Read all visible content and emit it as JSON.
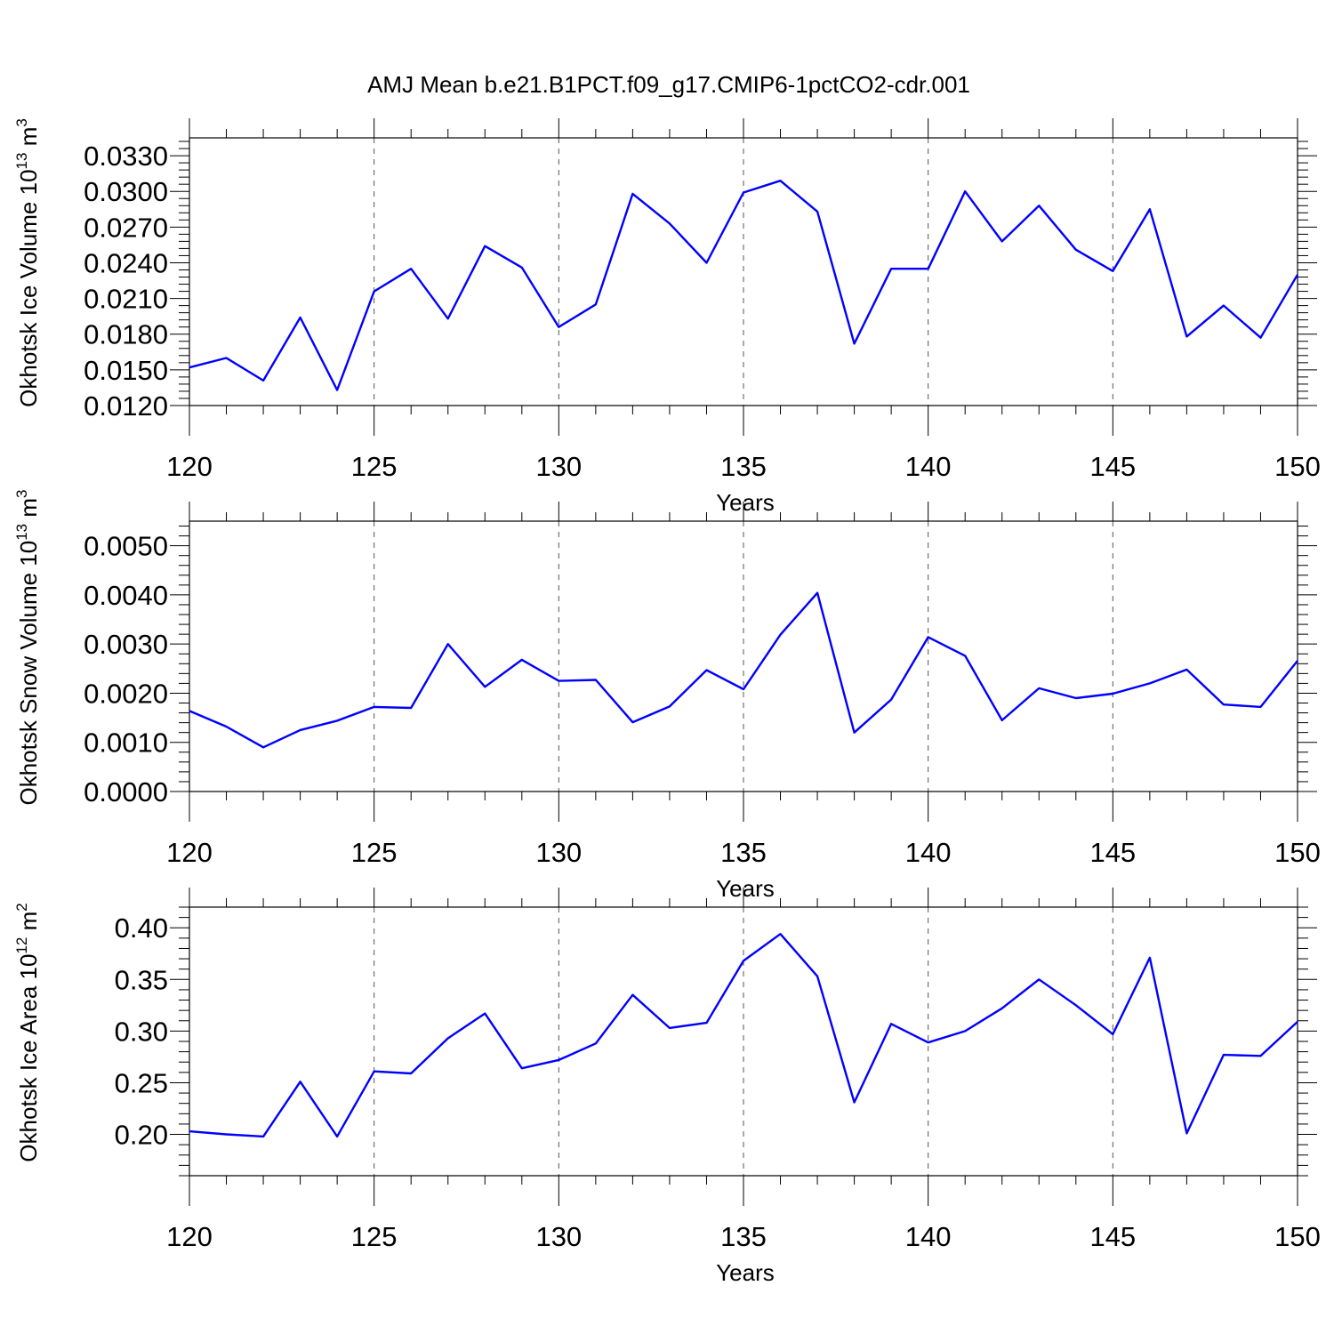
{
  "title": "AMJ Mean b.e21.B1PCT.f09_g17.CMIP6-1pctCO2-cdr.001",
  "colors": {
    "line": "#0000ff",
    "frame": "#000000",
    "grid": "#555555"
  },
  "chart_data": [
    {
      "type": "line",
      "ylabel": {
        "text": "Okhotsk Ice Volume 10",
        "sup": "13",
        "unit": " m",
        "unit_sup": "3"
      },
      "xlabel": "Years",
      "xlim": [
        120,
        150
      ],
      "ylim": [
        0.012,
        0.0345
      ],
      "xticks": [
        "120",
        "125",
        "130",
        "135",
        "140",
        "145",
        "150"
      ],
      "yticks": [
        "0.0120",
        "0.0150",
        "0.0180",
        "0.0210",
        "0.0240",
        "0.0270",
        "0.0300",
        "0.0330"
      ],
      "grid_x": [
        125,
        130,
        135,
        140,
        145
      ],
      "series": [
        {
          "x": [
            120,
            121,
            122,
            123,
            124,
            125,
            126,
            127,
            128,
            129,
            130,
            131,
            132,
            133,
            134,
            135,
            136,
            137,
            138,
            139,
            140,
            141,
            142,
            143,
            144,
            145,
            146,
            147,
            148,
            149,
            150
          ],
          "values": [
            0.0152,
            0.016,
            0.0141,
            0.0194,
            0.0133,
            0.0216,
            0.0235,
            0.0193,
            0.0254,
            0.0236,
            0.0186,
            0.0205,
            0.0298,
            0.0273,
            0.024,
            0.0299,
            0.0309,
            0.0283,
            0.0172,
            0.0235,
            0.0235,
            0.03,
            0.0258,
            0.0288,
            0.0251,
            0.0233,
            0.0285,
            0.0178,
            0.0204,
            0.0177,
            0.023
          ]
        }
      ]
    },
    {
      "type": "line",
      "ylabel": {
        "text": "Okhotsk Snow Volume 10",
        "sup": "13",
        "unit": " m",
        "unit_sup": "3"
      },
      "xlabel": "Years",
      "xlim": [
        120,
        150
      ],
      "ylim": [
        0.0,
        0.0055
      ],
      "xticks": [
        "120",
        "125",
        "130",
        "135",
        "140",
        "145",
        "150"
      ],
      "yticks": [
        "0.0000",
        "0.0010",
        "0.0020",
        "0.0030",
        "0.0040",
        "0.0050"
      ],
      "grid_x": [
        125,
        130,
        135,
        140,
        145
      ],
      "series": [
        {
          "x": [
            120,
            121,
            122,
            123,
            124,
            125,
            126,
            127,
            128,
            129,
            130,
            131,
            132,
            133,
            134,
            135,
            136,
            137,
            138,
            139,
            140,
            141,
            142,
            143,
            144,
            145,
            146,
            147,
            148,
            149,
            150
          ],
          "values": [
            0.00164,
            0.00132,
            0.0009,
            0.00125,
            0.00144,
            0.00172,
            0.0017,
            0.003,
            0.00213,
            0.00268,
            0.00225,
            0.00227,
            0.00141,
            0.00173,
            0.00247,
            0.00208,
            0.00319,
            0.00404,
            0.0012,
            0.00187,
            0.00314,
            0.00276,
            0.00145,
            0.0021,
            0.0019,
            0.00199,
            0.0022,
            0.00248,
            0.00177,
            0.00172,
            0.00266
          ]
        }
      ]
    },
    {
      "type": "line",
      "ylabel": {
        "text": "Okhotsk Ice Area 10",
        "sup": "12",
        "unit": " m",
        "unit_sup": "2"
      },
      "xlabel": "Years",
      "xlim": [
        120,
        150
      ],
      "ylim": [
        0.16,
        0.42
      ],
      "xticks": [
        "120",
        "125",
        "130",
        "135",
        "140",
        "145",
        "150"
      ],
      "yticks": [
        "0.20",
        "0.25",
        "0.30",
        "0.35",
        "0.40"
      ],
      "grid_x": [
        125,
        130,
        135,
        140,
        145
      ],
      "series": [
        {
          "x": [
            120,
            121,
            122,
            123,
            124,
            125,
            126,
            127,
            128,
            129,
            130,
            131,
            132,
            133,
            134,
            135,
            136,
            137,
            138,
            139,
            140,
            141,
            142,
            143,
            144,
            145,
            146,
            147,
            148,
            149,
            150
          ],
          "values": [
            0.203,
            0.2,
            0.198,
            0.251,
            0.198,
            0.261,
            0.259,
            0.293,
            0.317,
            0.264,
            0.272,
            0.288,
            0.335,
            0.303,
            0.308,
            0.368,
            0.394,
            0.353,
            0.231,
            0.307,
            0.289,
            0.3,
            0.322,
            0.35,
            0.325,
            0.297,
            0.371,
            0.201,
            0.277,
            0.276,
            0.309
          ]
        }
      ]
    }
  ]
}
